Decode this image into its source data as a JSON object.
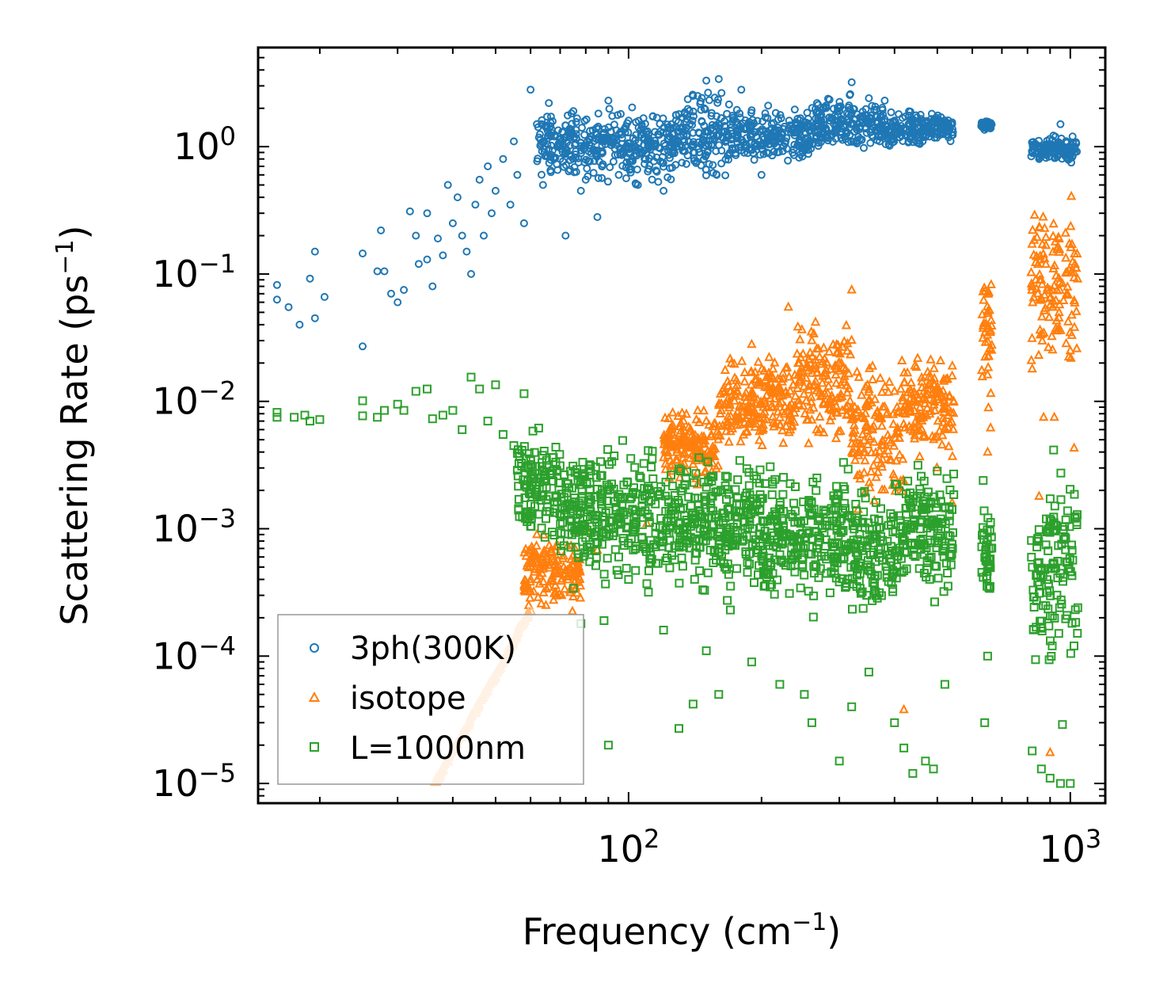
{
  "chart_data": {
    "type": "scatter",
    "xscale": "log",
    "yscale": "log",
    "xlim": [
      14.5,
      1200
    ],
    "ylim": [
      7e-06,
      6
    ],
    "xlabel": {
      "text": "Frequency (cm",
      "sup": "−1",
      "close": ")"
    },
    "ylabel": {
      "text": "Scattering Rate (ps",
      "sup": "−1",
      "close": ")"
    },
    "x_ticks": [
      {
        "value": 100,
        "base": "10",
        "exp": "2"
      },
      {
        "value": 1000,
        "base": "10",
        "exp": "3"
      }
    ],
    "y_ticks": [
      {
        "value": 1,
        "base": "10",
        "exp": "0"
      },
      {
        "value": 0.1,
        "base": "10",
        "exp": "−1"
      },
      {
        "value": 0.01,
        "base": "10",
        "exp": "−2"
      },
      {
        "value": 0.001,
        "base": "10",
        "exp": "−3"
      },
      {
        "value": 0.0001,
        "base": "10",
        "exp": "−4"
      },
      {
        "value": 1e-05,
        "base": "10",
        "exp": "−5"
      }
    ],
    "legend_position": "lower-left",
    "series": [
      {
        "name": "3ph(300K)",
        "marker": "circle",
        "color": "#1f77b4",
        "points": [
          [
            16,
            0.063
          ],
          [
            16,
            0.082
          ],
          [
            17,
            0.055
          ],
          [
            18,
            0.04
          ],
          [
            19,
            0.092
          ],
          [
            19.5,
            0.15
          ],
          [
            19.5,
            0.045
          ],
          [
            20.5,
            0.066
          ],
          [
            25,
            0.145
          ],
          [
            25,
            0.027
          ],
          [
            27,
            0.105
          ],
          [
            27.5,
            0.22
          ],
          [
            28,
            0.105
          ],
          [
            29,
            0.07
          ],
          [
            30,
            0.06
          ],
          [
            31,
            0.075
          ],
          [
            32,
            0.31
          ],
          [
            33,
            0.2
          ],
          [
            33.5,
            0.12
          ],
          [
            35,
            0.3
          ],
          [
            35,
            0.13
          ],
          [
            36,
            0.08
          ],
          [
            37,
            0.19
          ],
          [
            38,
            0.14
          ],
          [
            39,
            0.5
          ],
          [
            40,
            0.25
          ],
          [
            41,
            0.4
          ],
          [
            42,
            0.2
          ],
          [
            43,
            0.15
          ],
          [
            44,
            0.1
          ],
          [
            45,
            0.35
          ],
          [
            46,
            0.55
          ],
          [
            47,
            0.2
          ],
          [
            48,
            0.7
          ],
          [
            49,
            0.3
          ],
          [
            50,
            0.45
          ],
          [
            52,
            0.8
          ],
          [
            54,
            0.35
          ],
          [
            55,
            1.1
          ],
          [
            56,
            0.6
          ],
          [
            58,
            0.25
          ],
          [
            60,
            2.8
          ],
          [
            62,
            1.5
          ],
          [
            64,
            0.5
          ],
          [
            66,
            2.2
          ],
          [
            68,
            1.2
          ],
          [
            70,
            0.8
          ],
          [
            72,
            0.2
          ],
          [
            75,
            1.9
          ],
          [
            78,
            0.45
          ],
          [
            80,
            0.55
          ],
          [
            85,
            0.28
          ],
          [
            90,
            2.3
          ],
          [
            95,
            0.6
          ],
          [
            100,
            1.6
          ],
          [
            105,
            0.5
          ],
          [
            110,
            1.1
          ],
          [
            120,
            0.45
          ],
          [
            130,
            1.8
          ],
          [
            140,
            2.5
          ],
          [
            150,
            3.3
          ],
          [
            160,
            3.4
          ],
          [
            170,
            1.5
          ],
          [
            180,
            2.8
          ],
          [
            200,
            0.6
          ],
          [
            220,
            1.2
          ],
          [
            250,
            1.4
          ],
          [
            280,
            2.1
          ],
          [
            300,
            1.9
          ],
          [
            320,
            3.2
          ],
          [
            350,
            2.4
          ],
          [
            380,
            2.3
          ],
          [
            400,
            1.6
          ],
          [
            420,
            1.4
          ],
          [
            450,
            1.7
          ],
          [
            480,
            1.2
          ],
          [
            500,
            1.6
          ],
          [
            530,
            1.5
          ],
          [
            640,
            1.5
          ],
          [
            660,
            1.45
          ],
          [
            820,
            0.9
          ],
          [
            850,
            0.8
          ],
          [
            900,
            1.0
          ],
          [
            950,
            1.5
          ],
          [
            1000,
            0.85
          ]
        ],
        "bands": [
          {
            "x0": 62,
            "x1": 80,
            "ylo": 0.5,
            "yhi": 2.2
          },
          {
            "x0": 80,
            "x1": 130,
            "ylo": 0.45,
            "yhi": 2.4
          },
          {
            "x0": 130,
            "x1": 170,
            "ylo": 0.45,
            "yhi": 3.3
          },
          {
            "x0": 170,
            "x1": 260,
            "ylo": 0.6,
            "yhi": 2.3
          },
          {
            "x0": 260,
            "x1": 380,
            "ylo": 0.8,
            "yhi": 2.8
          },
          {
            "x0": 380,
            "x1": 470,
            "ylo": 0.9,
            "yhi": 2.1
          },
          {
            "x0": 470,
            "x1": 545,
            "ylo": 1.0,
            "yhi": 2.0
          },
          {
            "x0": 628,
            "x1": 665,
            "ylo": 1.3,
            "yhi": 1.65
          },
          {
            "x0": 815,
            "x1": 1040,
            "ylo": 0.7,
            "yhi": 1.3
          }
        ]
      },
      {
        "name": "isotope",
        "marker": "triangle",
        "color": "#ff7f0e",
        "color_light": "#ffbb78",
        "points": [
          [
            62,
            0.0009
          ],
          [
            65,
            0.00025
          ],
          [
            75,
            0.00052
          ],
          [
            80,
            0.001
          ],
          [
            85,
            0.00068
          ],
          [
            110,
            0.0011
          ],
          [
            130,
            0.003
          ],
          [
            140,
            0.0032
          ],
          [
            150,
            0.007
          ],
          [
            170,
            0.012
          ],
          [
            190,
            0.028
          ],
          [
            230,
            0.055
          ],
          [
            260,
            0.03
          ],
          [
            300,
            0.02
          ],
          [
            320,
            0.075
          ],
          [
            400,
            0.012
          ],
          [
            420,
            3.8e-05
          ],
          [
            520,
            0.006
          ],
          [
            540,
            0.0016
          ],
          [
            650,
            0.004
          ],
          [
            660,
            0.0062
          ],
          [
            820,
            0.018
          ],
          [
            850,
            0.0018
          ],
          [
            870,
            0.0075
          ],
          [
            900,
            1.75e-05
          ],
          [
            920,
            0.0075
          ],
          [
            1000,
            0.025
          ],
          [
            1020,
            0.0043
          ]
        ],
        "light_tail": [
          [
            36.5,
            1e-05
          ],
          [
            38,
            1.3e-05
          ],
          [
            40,
            1.8e-05
          ],
          [
            42,
            2.4e-05
          ],
          [
            44,
            3.2e-05
          ],
          [
            46,
            4.2e-05
          ],
          [
            48,
            5.5e-05
          ],
          [
            50,
            7e-05
          ],
          [
            52,
            9e-05
          ],
          [
            54,
            0.000115
          ],
          [
            56,
            0.00015
          ],
          [
            58,
            0.00019
          ],
          [
            60,
            0.00022
          ]
        ],
        "bands": [
          {
            "x0": 58,
            "x1": 78,
            "ylo": 0.0002,
            "yhi": 0.0011
          },
          {
            "x0": 120,
            "x1": 160,
            "ylo": 0.002,
            "yhi": 0.01
          },
          {
            "x0": 160,
            "x1": 240,
            "ylo": 0.0035,
            "yhi": 0.03
          },
          {
            "x0": 240,
            "x1": 320,
            "ylo": 0.0035,
            "yhi": 0.05
          },
          {
            "x0": 320,
            "x1": 420,
            "ylo": 0.001,
            "yhi": 0.03
          },
          {
            "x0": 420,
            "x1": 545,
            "ylo": 0.0025,
            "yhi": 0.035
          },
          {
            "x0": 630,
            "x1": 665,
            "ylo": 0.006,
            "yhi": 0.22
          },
          {
            "x0": 815,
            "x1": 1040,
            "ylo": 0.01,
            "yhi": 0.6
          }
        ]
      },
      {
        "name": "L=1000nm",
        "marker": "square",
        "color": "#2ca02c",
        "points": [
          [
            16,
            0.0075
          ],
          [
            16,
            0.0082
          ],
          [
            17.5,
            0.0075
          ],
          [
            18.5,
            0.0078
          ],
          [
            19,
            0.007
          ],
          [
            20,
            0.0072
          ],
          [
            25,
            0.0101
          ],
          [
            25,
            0.0077
          ],
          [
            27,
            0.0075
          ],
          [
            28,
            0.0085
          ],
          [
            30,
            0.0095
          ],
          [
            31,
            0.0085
          ],
          [
            33,
            0.012
          ],
          [
            35,
            0.0125
          ],
          [
            36,
            0.0073
          ],
          [
            38,
            0.0078
          ],
          [
            40,
            0.0085
          ],
          [
            42,
            0.006
          ],
          [
            44,
            0.0155
          ],
          [
            46,
            0.0125
          ],
          [
            48,
            0.007
          ],
          [
            50,
            0.0135
          ],
          [
            52,
            0.0055
          ],
          [
            55,
            0.0045
          ],
          [
            58,
            0.0115
          ],
          [
            60,
            0.0035
          ],
          [
            65,
            0.0012
          ],
          [
            70,
            0.0008
          ],
          [
            75,
            0.00034
          ],
          [
            78,
            0.00018
          ],
          [
            80,
            0.00085
          ],
          [
            88,
            0.00019
          ],
          [
            90,
            2e-05
          ],
          [
            95,
            0.0006
          ],
          [
            100,
            0.0004
          ],
          [
            110,
            0.00037
          ],
          [
            120,
            0.00016
          ],
          [
            130,
            2.7e-05
          ],
          [
            140,
            4.2e-05
          ],
          [
            150,
            0.00011
          ],
          [
            160,
            5e-05
          ],
          [
            170,
            0.00023
          ],
          [
            190,
            9e-05
          ],
          [
            220,
            6e-05
          ],
          [
            250,
            5e-05
          ],
          [
            260,
            3e-05
          ],
          [
            300,
            1.5e-05
          ],
          [
            320,
            4e-05
          ],
          [
            350,
            7.5e-05
          ],
          [
            400,
            3e-05
          ],
          [
            420,
            1.9e-05
          ],
          [
            440,
            1.2e-05
          ],
          [
            470,
            1.5e-05
          ],
          [
            490,
            1.3e-05
          ],
          [
            520,
            6e-05
          ],
          [
            640,
            3e-05
          ],
          [
            650,
            0.0001
          ],
          [
            820,
            1.8e-05
          ],
          [
            860,
            1.3e-05
          ],
          [
            900,
            1.1e-05
          ],
          [
            950,
            1e-05
          ],
          [
            1000,
            1e-05
          ],
          [
            960,
            2.9e-05
          ]
        ],
        "bands": [
          {
            "x0": 56,
            "x1": 70,
            "ylo": 0.0006,
            "yhi": 0.0075
          },
          {
            "x0": 70,
            "x1": 110,
            "ylo": 0.0003,
            "yhi": 0.006
          },
          {
            "x0": 110,
            "x1": 200,
            "ylo": 0.00025,
            "yhi": 0.005
          },
          {
            "x0": 200,
            "x1": 320,
            "ylo": 0.00018,
            "yhi": 0.004
          },
          {
            "x0": 320,
            "x1": 420,
            "ylo": 0.00015,
            "yhi": 0.003
          },
          {
            "x0": 420,
            "x1": 545,
            "ylo": 0.0002,
            "yhi": 0.0055
          },
          {
            "x0": 630,
            "x1": 665,
            "ylo": 0.0002,
            "yhi": 0.0025
          },
          {
            "x0": 815,
            "x1": 1040,
            "ylo": 5e-05,
            "yhi": 0.0045
          }
        ]
      }
    ]
  }
}
